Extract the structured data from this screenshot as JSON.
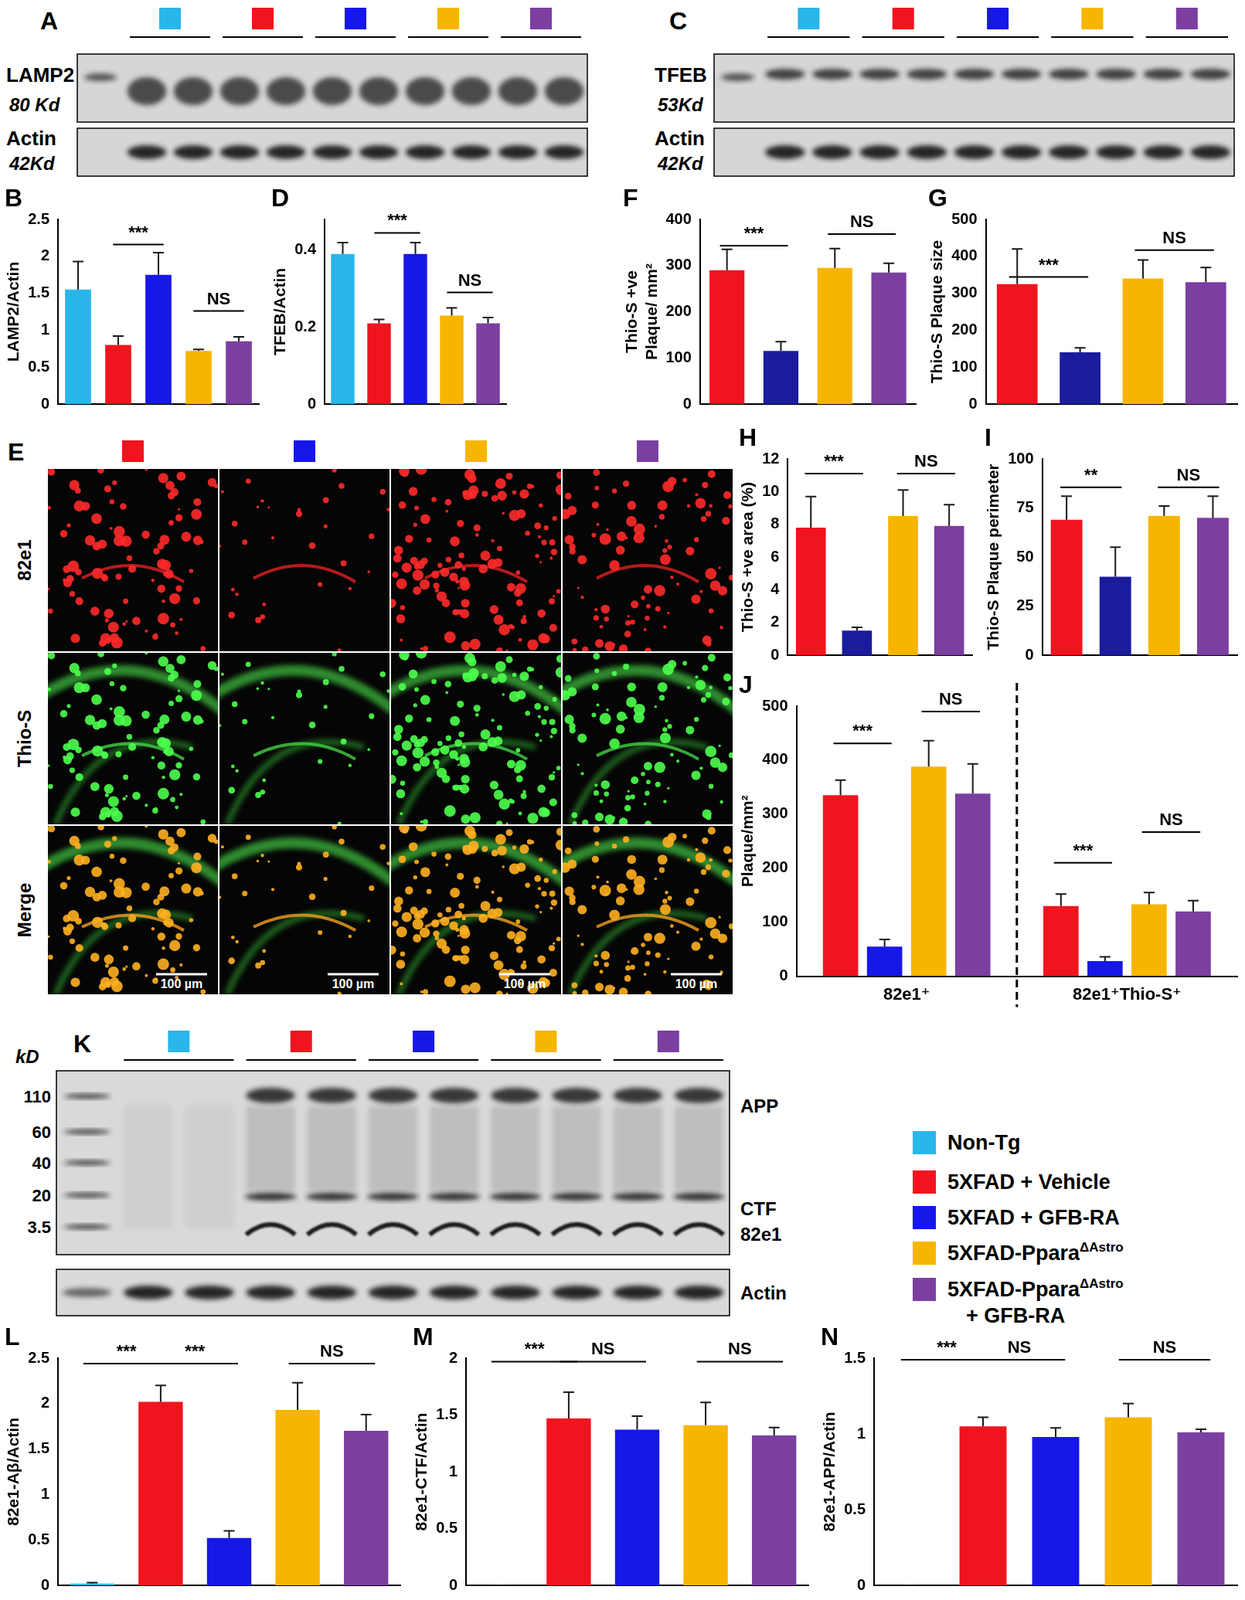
{
  "legend": [
    {
      "label": "Non-Tg",
      "color": "#29b6ea"
    },
    {
      "label": "5XFAD + Vehicle",
      "color": "#f0141e"
    },
    {
      "label": "5XFAD + GFB-RA",
      "color": "#1717e8"
    },
    {
      "label": "5XFAD-Ppara",
      "sup": "ΔAstro",
      "color": "#f7b500"
    },
    {
      "label": "5XFAD-Ppara",
      "sup": "ΔAstro",
      "line2": "+ GFB-RA",
      "color": "#7b3fa1"
    }
  ],
  "blots": [
    {
      "panel": "A",
      "group_colors": [
        "#29b6ea",
        "#f0141e",
        "#1717e8",
        "#f7b500",
        "#7b3fa1"
      ],
      "rows": [
        {
          "protein": "LAMP2",
          "size": "80 Kd"
        },
        {
          "protein": "Actin",
          "size": "42Kd"
        }
      ]
    },
    {
      "panel": "C",
      "group_colors": [
        "#29b6ea",
        "#f0141e",
        "#1717e8",
        "#f7b500",
        "#7b3fa1"
      ],
      "rows": [
        {
          "protein": "TFEB",
          "size": "53Kd"
        },
        {
          "protein": "Actin",
          "size": "42Kd"
        }
      ]
    },
    {
      "panel": "K",
      "unit": "kD",
      "group_colors": [
        "#29b6ea",
        "#f0141e",
        "#1717e8",
        "#f7b500",
        "#7b3fa1"
      ],
      "ladder": [
        "110",
        "60",
        "40",
        "20",
        "3.5"
      ],
      "bands": [
        "APP",
        "CTF",
        "82e1"
      ],
      "loading": "Actin"
    }
  ],
  "images": {
    "panel": "E",
    "column_colors": [
      "#f0141e",
      "#1717e8",
      "#f7b500",
      "#7b3fa1"
    ],
    "rows": [
      "82e1",
      "Thio-S",
      "Merge"
    ],
    "scale_bar": "100 µm"
  },
  "chart_data": [
    {
      "panel": "B",
      "type": "bar",
      "y_label": "LAMP2/Actin",
      "categories": [
        null,
        null,
        null,
        null,
        null
      ],
      "values": [
        1.55,
        0.8,
        1.75,
        0.72,
        0.85
      ],
      "errors": [
        0.38,
        0.12,
        0.3,
        0.02,
        0.06
      ],
      "colors": [
        "#29b6ea",
        "#f0141e",
        "#1717e8",
        "#f7b500",
        "#7b3fa1"
      ],
      "ylim": [
        0,
        2.5
      ],
      "yticks": [
        0,
        0.5,
        1,
        1.5,
        2,
        2.5
      ],
      "grid": false,
      "tick_labels": "y",
      "annotations": [
        {
          "from": 1,
          "to": 2,
          "y": 2.16,
          "label": "***"
        },
        {
          "from": 3,
          "to": 4,
          "y": 1.26,
          "label": "NS"
        }
      ]
    },
    {
      "panel": "D",
      "type": "bar",
      "y_label": "TFEB/Actin",
      "categories": [
        null,
        null,
        null,
        null,
        null
      ],
      "values": [
        0.39,
        0.21,
        0.39,
        0.23,
        0.21
      ],
      "errors": [
        0.03,
        0.01,
        0.03,
        0.02,
        0.015
      ],
      "colors": [
        "#29b6ea",
        "#f0141e",
        "#1717e8",
        "#f7b500",
        "#7b3fa1"
      ],
      "ylim": [
        0,
        0.48
      ],
      "yticks": [
        0,
        0.2,
        0.4
      ],
      "grid": false,
      "tick_labels": "y",
      "annotations": [
        {
          "from": 1,
          "to": 2,
          "y": 0.445,
          "label": "***"
        },
        {
          "from": 3,
          "to": 4,
          "y": 0.29,
          "label": "NS"
        }
      ]
    },
    {
      "panel": "F",
      "type": "bar",
      "y_label": [
        "Thio-S +ve",
        "Plaque/ mm²"
      ],
      "categories": [
        null,
        null,
        null,
        null
      ],
      "values": [
        290,
        115,
        295,
        285
      ],
      "errors": [
        45,
        20,
        42,
        20
      ],
      "colors": [
        "#f0141e",
        "#1b1b9e",
        "#f7b500",
        "#7b3fa1"
      ],
      "ylim": [
        0,
        400
      ],
      "yticks": [
        0,
        100,
        200,
        300,
        400
      ],
      "grid": false,
      "tick_labels": "y",
      "annotations": [
        {
          "from": 0,
          "to": 1,
          "y": 343,
          "label": "***"
        },
        {
          "from": 2,
          "to": 3,
          "y": 368,
          "label": "NS"
        }
      ]
    },
    {
      "panel": "G",
      "type": "bar",
      "y_label": "Thio-S Plaque size",
      "categories": [
        null,
        null,
        null,
        null
      ],
      "values": [
        325,
        140,
        340,
        330
      ],
      "errors": [
        95,
        12,
        50,
        40
      ],
      "colors": [
        "#f0141e",
        "#1b1b9e",
        "#f7b500",
        "#7b3fa1"
      ],
      "ylim": [
        0,
        500
      ],
      "yticks": [
        0,
        100,
        200,
        300,
        400,
        500
      ],
      "grid": false,
      "tick_labels": "y",
      "annotations": [
        {
          "from": 0,
          "to": 1,
          "y": 344,
          "label": "***"
        },
        {
          "from": 2,
          "to": 3,
          "y": 417,
          "label": "NS"
        }
      ]
    },
    {
      "panel": "H",
      "type": "bar",
      "y_label": "Thio-S +ve area (%)",
      "categories": [
        null,
        null,
        null,
        null
      ],
      "values": [
        7.8,
        1.5,
        8.5,
        7.9
      ],
      "errors": [
        1.9,
        0.2,
        1.6,
        1.3
      ],
      "colors": [
        "#f0141e",
        "#1b1b9e",
        "#f7b500",
        "#7b3fa1"
      ],
      "ylim": [
        0,
        12
      ],
      "yticks": [
        0,
        2,
        4,
        6,
        8,
        10,
        12
      ],
      "grid": false,
      "tick_labels": "y",
      "annotations": [
        {
          "from": 0,
          "to": 1,
          "y": 11.1,
          "label": "***"
        },
        {
          "from": 2,
          "to": 3,
          "y": 11.1,
          "label": "NS"
        }
      ]
    },
    {
      "panel": "I",
      "type": "bar",
      "y_label": "Thio-S Plaque perimeter",
      "categories": [
        null,
        null,
        null,
        null
      ],
      "values": [
        69,
        40,
        71,
        70
      ],
      "errors": [
        12,
        15,
        5,
        11
      ],
      "colors": [
        "#f0141e",
        "#1b1b9e",
        "#f7b500",
        "#7b3fa1"
      ],
      "ylim": [
        0,
        100
      ],
      "yticks": [
        0,
        25,
        50,
        75,
        100
      ],
      "grid": false,
      "tick_labels": "y",
      "annotations": [
        {
          "from": 0,
          "to": 1,
          "y": 85.5,
          "label": "**"
        },
        {
          "from": 2,
          "to": 3,
          "y": 85.5,
          "label": "NS"
        }
      ]
    },
    {
      "panel": "J",
      "type": "bar",
      "y_label": "Plaque/mm²",
      "categories": [
        "82e1⁺",
        "82e1⁺Thio-S⁺"
      ],
      "series": [
        {
          "color": "#f0141e",
          "values": [
            335,
            130
          ],
          "errors": [
            28,
            22
          ]
        },
        {
          "color": "#1717e8",
          "values": [
            55,
            28
          ],
          "errors": [
            13,
            8
          ]
        },
        {
          "color": "#f7b500",
          "values": [
            388,
            133
          ],
          "errors": [
            48,
            22
          ]
        },
        {
          "color": "#7b3fa1",
          "values": [
            338,
            120
          ],
          "errors": [
            55,
            20
          ]
        }
      ],
      "ylim": [
        0,
        500
      ],
      "yticks": [
        0,
        100,
        200,
        300,
        400,
        500
      ],
      "grid": false,
      "tick_labels": true,
      "annotations": [
        {
          "category": 0,
          "from": 0,
          "to": 1,
          "y": 431,
          "label": "***"
        },
        {
          "category": 0,
          "from": 2,
          "to": 3,
          "y": 490,
          "label": "NS"
        },
        {
          "category": 1,
          "from": 0,
          "to": 1,
          "y": 210,
          "label": "***"
        },
        {
          "category": 1,
          "from": 2,
          "to": 3,
          "y": 267,
          "label": "NS"
        }
      ]
    },
    {
      "panel": "L",
      "type": "bar",
      "y_label": "82e1-Aβ/Actin",
      "categories": [
        null,
        null,
        null,
        null,
        null
      ],
      "values": [
        0.02,
        2.02,
        0.52,
        1.93,
        1.7
      ],
      "errors": [
        0.01,
        0.18,
        0.08,
        0.3,
        0.18
      ],
      "colors": [
        "#29b6ea",
        "#f0141e",
        "#1717e8",
        "#f7b500",
        "#7b3fa1"
      ],
      "ylim": [
        0,
        2.5
      ],
      "yticks": [
        0,
        0.5,
        1,
        1.5,
        2,
        2.5
      ],
      "grid": false,
      "tick_labels": "y",
      "annotations": [
        {
          "from": 0,
          "to": 1,
          "y": 2.44,
          "label": "***"
        },
        {
          "from": 1,
          "to": 2,
          "y": 2.44,
          "label": "***"
        },
        {
          "from": 3,
          "to": 4,
          "y": 2.44,
          "label": "NS"
        }
      ]
    },
    {
      "panel": "M",
      "type": "bar",
      "y_label": "82e1-CTF/Actin",
      "categories": [
        null,
        null,
        null,
        null,
        null
      ],
      "values": [
        0,
        1.47,
        1.37,
        1.41,
        1.32
      ],
      "errors": [
        0,
        0.23,
        0.12,
        0.2,
        0.07
      ],
      "colors": [
        "#29b6ea",
        "#f0141e",
        "#1717e8",
        "#f7b500",
        "#7b3fa1"
      ],
      "ylim": [
        0,
        2
      ],
      "yticks": [
        0,
        0.5,
        1,
        1.5,
        2
      ],
      "grid": false,
      "tick_labels": "y",
      "annotations": [
        {
          "from": 0,
          "to": 1,
          "y": 1.97,
          "label": "***"
        },
        {
          "from": 1,
          "to": 2,
          "y": 1.97,
          "label": "NS"
        },
        {
          "from": 3,
          "to": 4,
          "y": 1.97,
          "label": "NS"
        }
      ]
    },
    {
      "panel": "N",
      "type": "bar",
      "y_label": "82e1-APP/Actin",
      "categories": [
        null,
        null,
        null,
        null,
        null
      ],
      "values": [
        0,
        1.05,
        0.98,
        1.11,
        1.01
      ],
      "errors": [
        0,
        0.06,
        0.06,
        0.09,
        0.02
      ],
      "colors": [
        "#29b6ea",
        "#f0141e",
        "#1717e8",
        "#f7b500",
        "#7b3fa1"
      ],
      "ylim": [
        0,
        1.5
      ],
      "yticks": [
        0,
        0.5,
        1,
        1.5
      ],
      "grid": false,
      "tick_labels": "y",
      "annotations": [
        {
          "from": 0,
          "to": 1,
          "y": 1.49,
          "label": "***"
        },
        {
          "from": 1,
          "to": 2,
          "y": 1.49,
          "label": "NS"
        },
        {
          "from": 3,
          "to": 4,
          "y": 1.49,
          "label": "NS"
        }
      ]
    }
  ]
}
